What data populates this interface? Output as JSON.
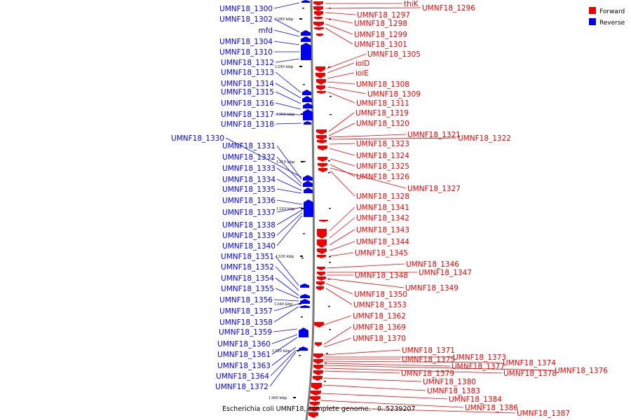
{
  "caption": "Escherichia coli UMNF18, complete genome. - 0..5239207",
  "legend": {
    "forward": {
      "label": "Forward",
      "color": "#ee0000"
    },
    "reverse": {
      "label": "Reverse",
      "color": "#0000ee"
    }
  },
  "ticks": [
    "1280 kbp",
    "1290 kbp",
    "1300 kbp",
    "1310 kbp",
    "1320 kbp",
    "1330 kbp",
    "1340 kbp",
    "1350 kbp",
    "1360 kbp"
  ],
  "reverse_labels": [
    "UMNF18_1300",
    "UMNF18_1302",
    "mfd",
    "UMNF18_1304",
    "UMNF18_1310",
    "UMNF18_1312",
    "UMNF18_1313",
    "UMNF18_1314",
    "UMNF18_1315",
    "UMNF18_1316",
    "UMNF18_1317",
    "UMNF18_1318",
    "UMNF18_1330",
    "UMNF18_1331",
    "UMNF18_1332",
    "UMNF18_1333",
    "UMNF18_1334",
    "UMNF18_1335",
    "UMNF18_1336",
    "UMNF18_1337",
    "UMNF18_1338",
    "UMNF18_1339",
    "UMNF18_1340",
    "UMNF18_1351",
    "UMNF18_1352",
    "UMNF18_1354",
    "UMNF18_1355",
    "UMNF18_1356",
    "UMNF18_1357",
    "UMNF18_1358",
    "UMNF18_1359",
    "UMNF18_1360",
    "UMNF18_1361",
    "UMNF18_1363",
    "UMNF18_1364",
    "UMNF18_1372"
  ],
  "forward_labels": [
    "thiK",
    "UMNF18_1296",
    "UMNF18_1297",
    "UMNF18_1298",
    "UMNF18_1299",
    "UMNF18_1301",
    "UMNF18_1305",
    "iolD",
    "iolE",
    "UMNF18_1308",
    "UMNF18_1309",
    "UMNF18_1311",
    "UMNF18_1319",
    "UMNF18_1320",
    "UMNF18_1321",
    "UMNF18_1322",
    "UMNF18_1323",
    "UMNF18_1324",
    "UMNF18_1325",
    "UMNF18_1326",
    "UMNF18_1327",
    "UMNF18_1328",
    "UMNF18_1341",
    "UMNF18_1342",
    "UMNF18_1343",
    "UMNF18_1344",
    "UMNF18_1345",
    "UMNF18_1346",
    "UMNF18_1347",
    "UMNF18_1348",
    "UMNF18_1349",
    "UMNF18_1350",
    "UMNF18_1353",
    "UMNF18_1362",
    "UMNF18_1369",
    "UMNF18_1370",
    "UMNF18_1371",
    "UMNF18_1373",
    "UMNF18_1375",
    "UMNF18_1374",
    "UMNF18_1377",
    "UMNF18_1376",
    "UMNF18_1378",
    "UMNF18_1379",
    "UMNF18_1380",
    "UMNF18_1383",
    "UMNF18_1384",
    "UMNF18_1386",
    "UMNF18_1387"
  ]
}
